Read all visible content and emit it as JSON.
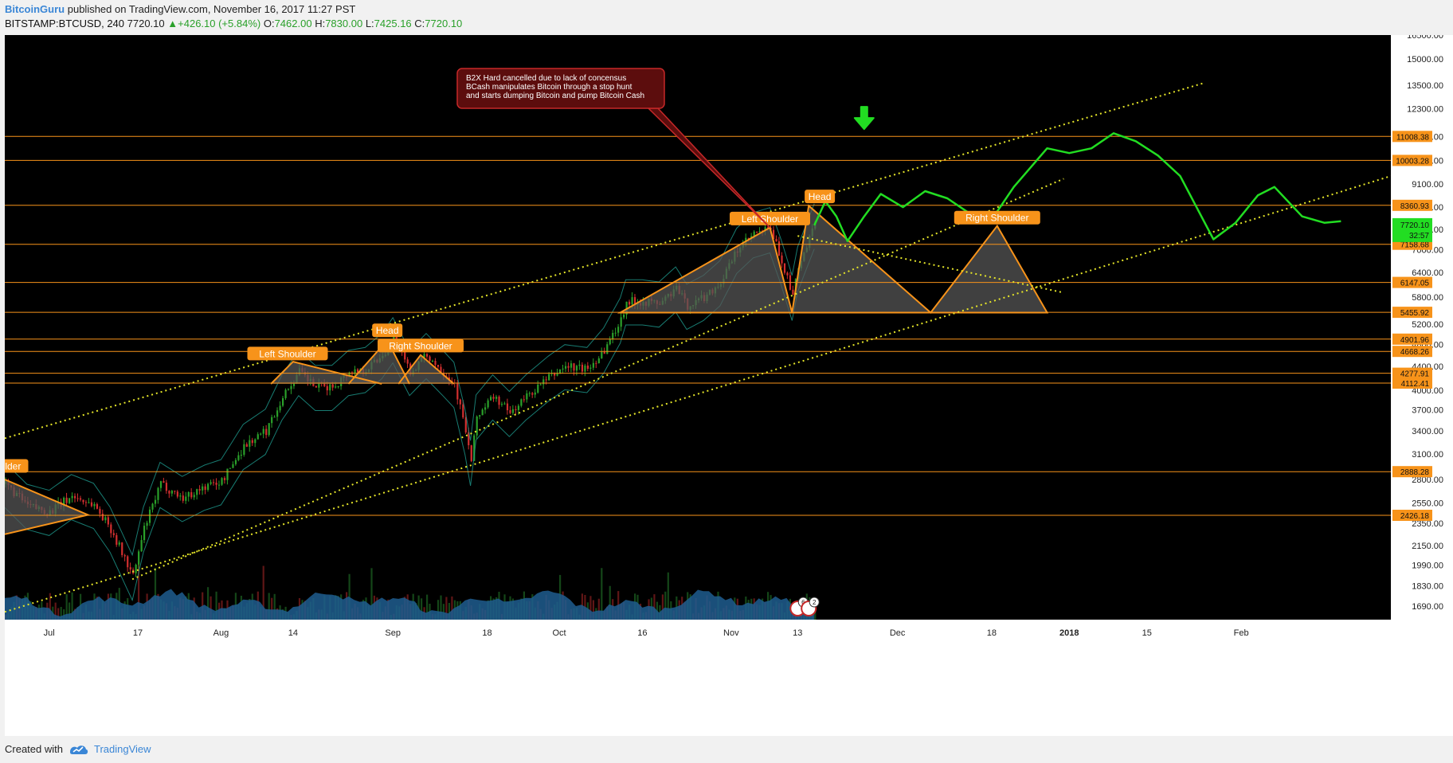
{
  "header": {
    "author": "BitcoinGuru",
    "published_text": "published on TradingView.com, November 16, 2017 11:27 PST",
    "symbol": "BITSTAMP:BTCUSD, 240",
    "last": "7720.10",
    "change": "+426.10 (+5.84%)",
    "o_label": "O:",
    "o_value": "7462.00",
    "h_label": "H:",
    "h_value": "7830.00",
    "l_label": "L:",
    "l_value": "7425.16",
    "c_label": "C:",
    "c_value": "7720.10"
  },
  "footer": {
    "created_with": "Created with",
    "brand": "TradingView"
  },
  "colors": {
    "background": "#000000",
    "level_line": "#f7931a",
    "channel": "#e6e629",
    "projection": "#22dd22",
    "pattern_fill": "#555555",
    "candle_up": "#2aa02a",
    "candle_down": "#d32f2f",
    "callout_fill": "#5c0d0d",
    "callout_border": "#c62828",
    "volume": "#1f5d8f"
  },
  "chart_data": {
    "type": "candlestick",
    "symbol": "BITSTAMP:BTCUSD",
    "interval": "240",
    "y_scale": "log",
    "ylim": [
      1600,
      16500
    ],
    "y_ticks": [
      16500,
      15000,
      13500,
      12300,
      11000,
      10000,
      9100,
      8300,
      7600,
      7000,
      6400,
      5800,
      5200,
      4800,
      4400,
      4000,
      3700,
      3400,
      3100,
      2800,
      2550,
      2350,
      2150,
      1990,
      1830,
      1690
    ],
    "y_tick_labels": [
      "16500.00",
      "15000.00",
      "13500.00",
      "12300.00",
      "11000.00",
      "10000.00",
      "9100.00",
      "8300.00",
      "7600.00",
      "7000.00",
      "6400.00",
      "5800.00",
      "5200.00",
      "4800.00",
      "4400.00",
      "4000.00",
      "3700.00",
      "3400.00",
      "3100.00",
      "2800.00",
      "2550.00",
      "2350.00",
      "2150.00",
      "1990.00",
      "1830.00",
      "1690.00"
    ],
    "x_range": [
      "2017-06-23",
      "2018-02-28"
    ],
    "x_ticks": [
      {
        "date": "2017-07-01",
        "label": "Jul"
      },
      {
        "date": "2017-07-17",
        "label": "17"
      },
      {
        "date": "2017-08-01",
        "label": "Aug"
      },
      {
        "date": "2017-08-14",
        "label": "14"
      },
      {
        "date": "2017-09-01",
        "label": "Sep"
      },
      {
        "date": "2017-09-18",
        "label": "18"
      },
      {
        "date": "2017-10-01",
        "label": "Oct"
      },
      {
        "date": "2017-10-16",
        "label": "16"
      },
      {
        "date": "2017-11-01",
        "label": "Nov"
      },
      {
        "date": "2017-11-13",
        "label": "13"
      },
      {
        "date": "2017-12-01",
        "label": "Dec"
      },
      {
        "date": "2017-12-18",
        "label": "18"
      },
      {
        "date": "2018-01-01",
        "label": "2018"
      },
      {
        "date": "2018-01-15",
        "label": "15"
      },
      {
        "date": "2018-02-01",
        "label": "Feb"
      }
    ],
    "price_levels": [
      {
        "value": 11008.38,
        "label": "11008.38"
      },
      {
        "value": 10003.28,
        "label": "10003.28"
      },
      {
        "value": 8360.93,
        "label": "8360.93"
      },
      {
        "value": 7158.68,
        "label": "7158.68"
      },
      {
        "value": 6147.05,
        "label": "6147.05"
      },
      {
        "value": 5455.92,
        "label": "5455.92"
      },
      {
        "value": 4901.96,
        "label": "4901.96"
      },
      {
        "value": 4668.26,
        "label": "4668.26"
      },
      {
        "value": 4277.91,
        "label": "4277.91"
      },
      {
        "value": 4112.41,
        "label": "4112.41"
      },
      {
        "value": 2888.28,
        "label": "2888.28"
      },
      {
        "value": 2426.18,
        "label": "2426.18"
      }
    ],
    "last_price": {
      "value": 7720.1,
      "label": "7720.10",
      "sub_label": "32:57"
    },
    "price_path": [
      {
        "date": "2017-06-23",
        "price": 2750
      },
      {
        "date": "2017-06-27",
        "price": 2520
      },
      {
        "date": "2017-07-01",
        "price": 2460
      },
      {
        "date": "2017-07-05",
        "price": 2620
      },
      {
        "date": "2017-07-09",
        "price": 2530
      },
      {
        "date": "2017-07-12",
        "price": 2300
      },
      {
        "date": "2017-07-16",
        "price": 1900
      },
      {
        "date": "2017-07-18",
        "price": 2300
      },
      {
        "date": "2017-07-21",
        "price": 2750
      },
      {
        "date": "2017-07-25",
        "price": 2600
      },
      {
        "date": "2017-07-29",
        "price": 2720
      },
      {
        "date": "2017-08-01",
        "price": 2780
      },
      {
        "date": "2017-08-05",
        "price": 3200
      },
      {
        "date": "2017-08-09",
        "price": 3400
      },
      {
        "date": "2017-08-12",
        "price": 3900
      },
      {
        "date": "2017-08-15",
        "price": 4300
      },
      {
        "date": "2017-08-18",
        "price": 4050
      },
      {
        "date": "2017-08-21",
        "price": 4050
      },
      {
        "date": "2017-08-24",
        "price": 4300
      },
      {
        "date": "2017-08-27",
        "price": 4350
      },
      {
        "date": "2017-08-30",
        "price": 4600
      },
      {
        "date": "2017-09-01",
        "price": 4900
      },
      {
        "date": "2017-09-04",
        "price": 4300
      },
      {
        "date": "2017-09-07",
        "price": 4600
      },
      {
        "date": "2017-09-10",
        "price": 4300
      },
      {
        "date": "2017-09-12",
        "price": 4100
      },
      {
        "date": "2017-09-14",
        "price": 3400
      },
      {
        "date": "2017-09-15",
        "price": 3000
      },
      {
        "date": "2017-09-16",
        "price": 3600
      },
      {
        "date": "2017-09-19",
        "price": 3900
      },
      {
        "date": "2017-09-22",
        "price": 3650
      },
      {
        "date": "2017-09-25",
        "price": 3900
      },
      {
        "date": "2017-09-29",
        "price": 4200
      },
      {
        "date": "2017-10-02",
        "price": 4400
      },
      {
        "date": "2017-10-06",
        "price": 4350
      },
      {
        "date": "2017-10-09",
        "price": 4700
      },
      {
        "date": "2017-10-12",
        "price": 5300
      },
      {
        "date": "2017-10-13",
        "price": 5700
      },
      {
        "date": "2017-10-16",
        "price": 5700
      },
      {
        "date": "2017-10-19",
        "price": 5650
      },
      {
        "date": "2017-10-22",
        "price": 6000
      },
      {
        "date": "2017-10-24",
        "price": 5600
      },
      {
        "date": "2017-10-27",
        "price": 5800
      },
      {
        "date": "2017-10-30",
        "price": 6150
      },
      {
        "date": "2017-11-02",
        "price": 7000
      },
      {
        "date": "2017-11-05",
        "price": 7450
      },
      {
        "date": "2017-11-08",
        "price": 7600
      },
      {
        "date": "2017-11-10",
        "price": 6700
      },
      {
        "date": "2017-11-12",
        "price": 5800
      },
      {
        "date": "2017-11-13",
        "price": 6500
      },
      {
        "date": "2017-11-15",
        "price": 7300
      },
      {
        "date": "2017-11-16",
        "price": 7720
      }
    ],
    "projection": [
      {
        "date": "2017-11-16",
        "price": 7720
      },
      {
        "date": "2017-11-18",
        "price": 8500
      },
      {
        "date": "2017-11-20",
        "price": 8000
      },
      {
        "date": "2017-11-22",
        "price": 7250
      },
      {
        "date": "2017-11-25",
        "price": 8000
      },
      {
        "date": "2017-11-28",
        "price": 8750
      },
      {
        "date": "2017-12-02",
        "price": 8300
      },
      {
        "date": "2017-12-06",
        "price": 8850
      },
      {
        "date": "2017-12-10",
        "price": 8600
      },
      {
        "date": "2017-12-14",
        "price": 8100
      },
      {
        "date": "2017-12-18",
        "price": 7900
      },
      {
        "date": "2017-12-22",
        "price": 9000
      },
      {
        "date": "2017-12-28",
        "price": 10500
      },
      {
        "date": "2018-01-01",
        "price": 10300
      },
      {
        "date": "2018-01-05",
        "price": 10500
      },
      {
        "date": "2018-01-09",
        "price": 11150
      },
      {
        "date": "2018-01-13",
        "price": 10800
      },
      {
        "date": "2018-01-17",
        "price": 10200
      },
      {
        "date": "2018-01-21",
        "price": 9400
      },
      {
        "date": "2018-01-27",
        "price": 7300
      },
      {
        "date": "2018-01-31",
        "price": 7800
      },
      {
        "date": "2018-02-04",
        "price": 8700
      },
      {
        "date": "2018-02-07",
        "price": 9000
      },
      {
        "date": "2018-02-12",
        "price": 8000
      },
      {
        "date": "2018-02-16",
        "price": 7800
      },
      {
        "date": "2018-02-19",
        "price": 7850
      }
    ],
    "trend_lines": [
      {
        "name": "upper-channel",
        "from": {
          "date": "2017-06-23",
          "price": 3300
        },
        "to": {
          "date": "2018-01-25",
          "price": 13600
        }
      },
      {
        "name": "middle-channel",
        "from": {
          "date": "2017-07-16",
          "price": 1880
        },
        "to": {
          "date": "2017-12-31",
          "price": 9300
        }
      },
      {
        "name": "lower-channel",
        "from": {
          "date": "2017-06-23",
          "price": 1650
        },
        "to": {
          "date": "2018-02-28",
          "price": 9400
        }
      },
      {
        "name": "neckline-slope",
        "from": {
          "date": "2017-11-13",
          "price": 7400
        },
        "to": {
          "date": "2017-12-31",
          "price": 5900
        }
      }
    ],
    "patterns": [
      {
        "name": "pattern-june",
        "fill_polygons": [
          [
            {
              "date": "2017-06-23",
              "price": 2800
            },
            {
              "date": "2017-07-08",
              "price": 2430
            },
            {
              "date": "2017-06-23",
              "price": 2250
            }
          ]
        ],
        "outline_paths": [
          [
            {
              "date": "2017-06-23",
              "price": 2800
            },
            {
              "date": "2017-07-08",
              "price": 2430
            },
            {
              "date": "2017-06-23",
              "price": 2250
            }
          ]
        ],
        "labels": [
          {
            "text": "Shoulder",
            "display": "ulder",
            "date": "2017-06-24",
            "price": 2950
          }
        ]
      },
      {
        "name": "pattern-august",
        "fill_polygons": [
          [
            {
              "date": "2017-08-10",
              "price": 4100
            },
            {
              "date": "2017-08-14",
              "price": 4480
            },
            {
              "date": "2017-08-30",
              "price": 4100
            }
          ],
          [
            {
              "date": "2017-08-24",
              "price": 4100
            },
            {
              "date": "2017-08-31",
              "price": 4880
            },
            {
              "date": "2017-09-04",
              "price": 4100
            }
          ],
          [
            {
              "date": "2017-09-02",
              "price": 4100
            },
            {
              "date": "2017-09-06",
              "price": 4600
            },
            {
              "date": "2017-09-12",
              "price": 4100
            }
          ]
        ],
        "outline_paths": [
          [
            {
              "date": "2017-08-10",
              "price": 4100
            },
            {
              "date": "2017-08-14",
              "price": 4480
            },
            {
              "date": "2017-08-30",
              "price": 4100
            }
          ],
          [
            {
              "date": "2017-08-24",
              "price": 4100
            },
            {
              "date": "2017-08-31",
              "price": 4880
            },
            {
              "date": "2017-09-04",
              "price": 4100
            }
          ],
          [
            {
              "date": "2017-09-02",
              "price": 4100
            },
            {
              "date": "2017-09-06",
              "price": 4600
            },
            {
              "date": "2017-09-12",
              "price": 4100
            }
          ]
        ],
        "labels": [
          {
            "text": "Left Shoulder",
            "date": "2017-08-13",
            "price": 4620
          },
          {
            "text": "Head",
            "date": "2017-08-31",
            "price": 5070
          },
          {
            "text": "Right Shoulder",
            "date": "2017-09-06",
            "price": 4770
          }
        ]
      },
      {
        "name": "pattern-november",
        "fill_polygons": [
          [
            {
              "date": "2017-10-12",
              "price": 5450
            },
            {
              "date": "2017-11-08",
              "price": 7650
            },
            {
              "date": "2017-11-12",
              "price": 5450
            }
          ],
          [
            {
              "date": "2017-11-12",
              "price": 5450
            },
            {
              "date": "2017-11-15",
              "price": 8350
            },
            {
              "date": "2017-12-07",
              "price": 5450
            }
          ],
          [
            {
              "date": "2017-12-07",
              "price": 5450
            },
            {
              "date": "2017-12-19",
              "price": 7700
            },
            {
              "date": "2017-12-28",
              "price": 5450
            }
          ]
        ],
        "outline_paths": [
          [
            {
              "date": "2017-11-12",
              "price": 5450
            },
            {
              "date": "2017-11-08",
              "price": 7650
            },
            {
              "date": "2017-10-12",
              "price": 5450
            },
            {
              "date": "2017-12-28",
              "price": 5450
            },
            {
              "date": "2017-12-19",
              "price": 7700
            },
            {
              "date": "2017-12-07",
              "price": 5450
            },
            {
              "date": "2017-11-15",
              "price": 8350
            },
            {
              "date": "2017-11-12",
              "price": 5450
            }
          ]
        ],
        "labels": [
          {
            "text": "Left Shoulder",
            "date": "2017-11-08",
            "price": 7920
          },
          {
            "text": "Head",
            "date": "2017-11-17",
            "price": 8650
          },
          {
            "text": "Right Shoulder",
            "date": "2017-12-19",
            "price": 7950
          }
        ]
      }
    ],
    "annotations": [
      {
        "type": "callout",
        "lines": [
          "B2X Hard cancelled due to lack of concensus",
          "BCash manipulates Bitcoin through a stop hunt",
          "and starts dumping Bitcoin and pump Bitcoin Cash"
        ],
        "anchor": {
          "date": "2017-11-08",
          "price": 7650
        }
      },
      {
        "type": "arrow-down",
        "date": "2017-11-25",
        "price": 11700
      }
    ],
    "event_badges": [
      {
        "date": "2017-11-13",
        "value": "6"
      },
      {
        "date": "2017-11-15",
        "value": "2"
      }
    ]
  }
}
